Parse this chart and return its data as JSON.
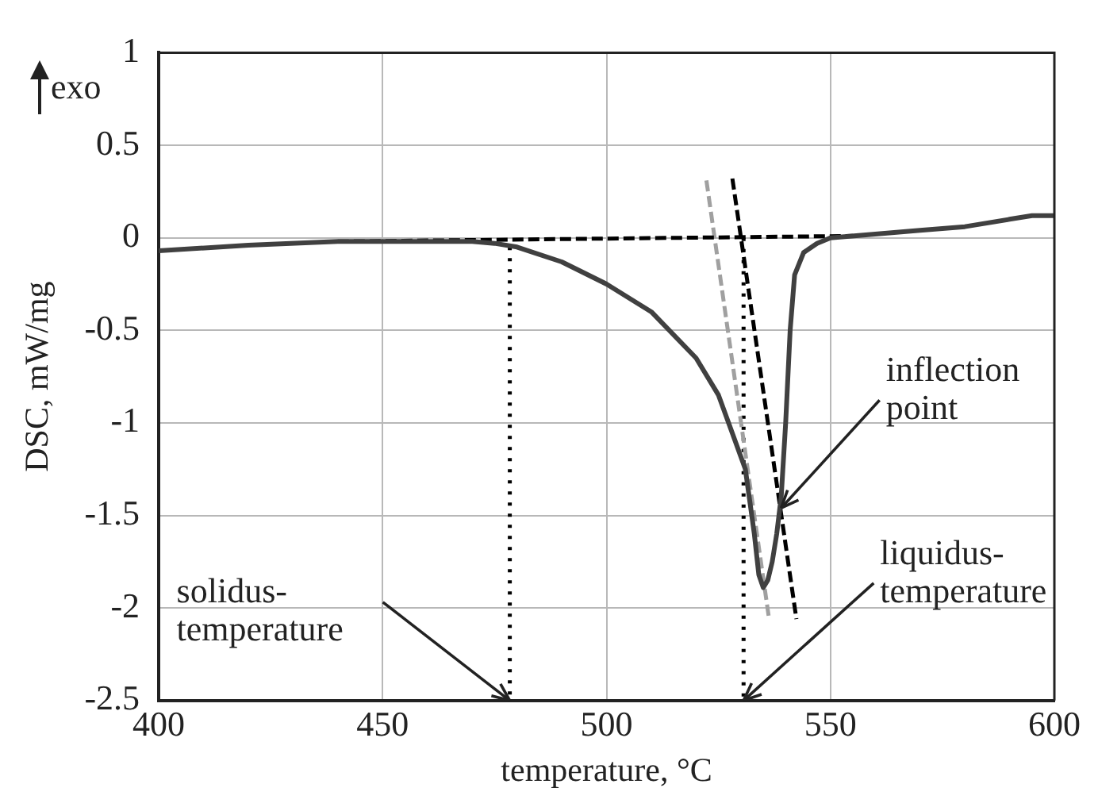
{
  "chart_data": {
    "type": "line",
    "xlabel": "temperature, °C",
    "ylabel": "DSC, mW/mg",
    "xlim": [
      400,
      600
    ],
    "xticks": [
      400,
      450,
      500,
      550,
      600
    ],
    "ylim": [
      -2.5,
      1
    ],
    "yticks": [
      -2.5,
      -2,
      -1.5,
      -1,
      -0.5,
      0,
      0.5,
      1
    ],
    "grid": true,
    "legend": false,
    "marker": "none",
    "series": [
      {
        "color": "#404040",
        "line_style": "solid",
        "x": [
          400,
          420,
          440,
          460,
          470,
          475,
          480,
          490,
          500,
          510,
          520,
          525,
          528,
          531,
          533,
          534,
          535,
          536,
          537,
          538,
          539,
          540,
          541,
          542,
          544,
          547,
          550,
          560,
          570,
          580,
          590,
          595,
          600
        ],
        "values": [
          -0.07,
          -0.04,
          -0.02,
          -0.02,
          -0.02,
          -0.03,
          -0.05,
          -0.13,
          -0.25,
          -0.4,
          -0.65,
          -0.85,
          -1.05,
          -1.25,
          -1.6,
          -1.82,
          -1.89,
          -1.85,
          -1.75,
          -1.6,
          -1.4,
          -1.0,
          -0.5,
          -0.2,
          -0.08,
          -0.03,
          0,
          0.02,
          0.04,
          0.06,
          0.1,
          0.12,
          0.12
        ]
      },
      {
        "color": "#000000",
        "line_style": "dashed",
        "x": [
          440,
          555
        ],
        "values": [
          -0.02,
          0.01
        ]
      },
      {
        "color": "#000000",
        "line_style": "dashed",
        "x": [
          528.1,
          542.4
        ],
        "values": [
          0.32,
          -2.06
        ]
      },
      {
        "color": "#a0a0a0",
        "line_style": "dashed",
        "x": [
          522.3,
          536.3
        ],
        "values": [
          0.31,
          -2.06
        ]
      },
      {
        "color": "#000000",
        "line_style": "dotted",
        "x": [
          478.4,
          478.4
        ],
        "values": [
          -0.05,
          -2.5
        ]
      },
      {
        "color": "#000000",
        "line_style": "dotted",
        "x": [
          530.6,
          530.6
        ],
        "values": [
          0,
          -2.5
        ]
      }
    ],
    "annotations": [
      "exo",
      {
        "text": "solidus-temperature",
        "x": 478.4,
        "y": -2.5
      },
      {
        "text": "liquidus-temperature",
        "x": 530.6,
        "y": -2.5
      },
      {
        "text": "inflection point",
        "x": 539,
        "y": -1.46
      }
    ]
  }
}
